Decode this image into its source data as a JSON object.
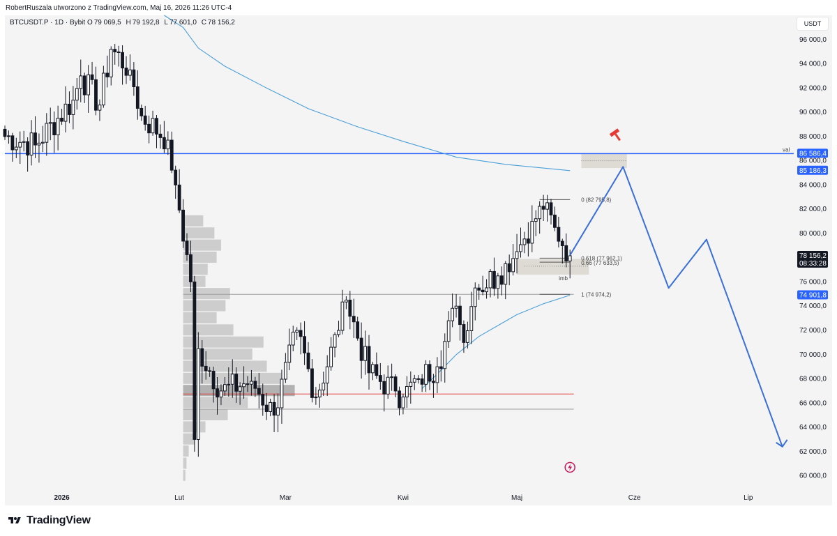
{
  "header": {
    "attribution": "RobertRuszala utworzono z TradingView.com, Maj 16, 2026 11:26 UTC-4",
    "symbol": "BTCUSDT.P · 1D · Bybit",
    "ohlc": [
      {
        "key": "O",
        "value": "79 069,5"
      },
      {
        "key": "H",
        "value": "79 192,8"
      },
      {
        "key": "L",
        "value": "77 601,0"
      },
      {
        "key": "C",
        "value": "78 156,2"
      }
    ],
    "currency": "USDT"
  },
  "footer": {
    "logo_text": "TradingView"
  },
  "colors": {
    "background": "#f4f4f4",
    "candle": "#131722",
    "blue_line": "#2962ff",
    "projection": "#3a6fd8",
    "ma_line": "#4a9fd8",
    "poc_red": "#e53935",
    "profile_grey": "#8a8a8a",
    "badge_blue": "#2962ff",
    "badge_dark": "#131722"
  },
  "icons": [
    "tradingview-logo-icon",
    "hammer-icon",
    "lightning-icon"
  ],
  "chart_data": {
    "type": "candlestick",
    "timeframe": "1D",
    "ylim": [
      59000,
      98000
    ],
    "y_ticks": [
      {
        "value": 96000,
        "label": "96 000,0"
      },
      {
        "value": 94000,
        "label": "94 000,0"
      },
      {
        "value": 92000,
        "label": "92 000,0"
      },
      {
        "value": 90000,
        "label": "90 000,0"
      },
      {
        "value": 88000,
        "label": "88 000,0"
      },
      {
        "value": 86000,
        "label": "86 000,0"
      },
      {
        "value": 84000,
        "label": "84 000,0"
      },
      {
        "value": 82000,
        "label": "82 000,0"
      },
      {
        "value": 80000,
        "label": "80 000,0"
      },
      {
        "value": 78000,
        "label": "78 000,0"
      },
      {
        "value": 76000,
        "label": "76 000,0"
      },
      {
        "value": 74000,
        "label": "74 000,0"
      },
      {
        "value": 72000,
        "label": "72 000,0"
      },
      {
        "value": 70000,
        "label": "70 000,0"
      },
      {
        "value": 68000,
        "label": "68 000,0"
      },
      {
        "value": 66000,
        "label": "66 000,0"
      },
      {
        "value": 64000,
        "label": "64 000,0"
      },
      {
        "value": 62000,
        "label": "62 000,0"
      },
      {
        "value": 60000,
        "label": "60 000,0"
      }
    ],
    "x_months": [
      {
        "date": "2026-01-01",
        "label": "2026"
      },
      {
        "date": "2026-02-01",
        "label": "Lut"
      },
      {
        "date": "2026-03-01",
        "label": "Mar"
      },
      {
        "date": "2026-04-01",
        "label": "Kwi"
      },
      {
        "date": "2026-05-01",
        "label": "Maj"
      },
      {
        "date": "2026-06-01",
        "label": "Cze"
      },
      {
        "date": "2026-07-01",
        "label": "Lip"
      }
    ],
    "x_range": [
      "2025-12-17",
      "2026-07-13"
    ],
    "anchors": [
      {
        "date": "2025-12-17",
        "price": 88000
      },
      {
        "date": "2025-12-25",
        "price": 87300
      },
      {
        "date": "2026-01-04",
        "price": 91000
      },
      {
        "date": "2026-01-06",
        "price": 93000
      },
      {
        "date": "2026-01-11",
        "price": 90600
      },
      {
        "date": "2026-01-14",
        "price": 95200
      },
      {
        "date": "2026-01-19",
        "price": 93500
      },
      {
        "date": "2026-01-22",
        "price": 89700
      },
      {
        "date": "2026-01-29",
        "price": 87700
      },
      {
        "date": "2026-01-31",
        "price": 84000
      },
      {
        "date": "2026-02-04",
        "price": 76000
      },
      {
        "date": "2026-02-05",
        "price": 63000
      },
      {
        "date": "2026-02-06",
        "price": 70500
      },
      {
        "date": "2026-02-12",
        "price": 67000
      },
      {
        "date": "2026-02-20",
        "price": 67800
      },
      {
        "date": "2026-02-26",
        "price": 65000
      },
      {
        "date": "2026-03-04",
        "price": 72000
      },
      {
        "date": "2026-03-09",
        "price": 66500
      },
      {
        "date": "2026-03-15",
        "price": 72000
      },
      {
        "date": "2026-03-17",
        "price": 74500
      },
      {
        "date": "2026-03-23",
        "price": 68500
      },
      {
        "date": "2026-03-30",
        "price": 67000
      },
      {
        "date": "2026-04-01",
        "price": 66500
      },
      {
        "date": "2026-04-05",
        "price": 68000
      },
      {
        "date": "2026-04-10",
        "price": 69000
      },
      {
        "date": "2026-04-15",
        "price": 74000
      },
      {
        "date": "2026-04-17",
        "price": 71000
      },
      {
        "date": "2026-04-20",
        "price": 75500
      },
      {
        "date": "2026-04-26",
        "price": 76500
      },
      {
        "date": "2026-04-28",
        "price": 77500
      },
      {
        "date": "2026-05-01",
        "price": 78500
      },
      {
        "date": "2026-05-05",
        "price": 81000
      },
      {
        "date": "2026-05-08",
        "price": 82000
      },
      {
        "date": "2026-05-11",
        "price": 80500
      },
      {
        "date": "2026-05-15",
        "price": 78156
      }
    ],
    "ma_200": [
      {
        "date": "2026-01-28",
        "price": 98000
      },
      {
        "date": "2026-02-02",
        "price": 97000
      },
      {
        "date": "2026-02-06",
        "price": 95300
      },
      {
        "date": "2026-02-13",
        "price": 93800
      },
      {
        "date": "2026-02-24",
        "price": 92000
      },
      {
        "date": "2026-03-07",
        "price": 90300
      },
      {
        "date": "2026-03-20",
        "price": 88800
      },
      {
        "date": "2026-04-01",
        "price": 87600
      },
      {
        "date": "2026-04-15",
        "price": 86300
      },
      {
        "date": "2026-04-28",
        "price": 85700
      },
      {
        "date": "2026-05-15",
        "price": 85186
      }
    ],
    "ma_fast": [
      {
        "date": "2026-04-06",
        "price": 67200
      },
      {
        "date": "2026-04-10",
        "price": 68400
      },
      {
        "date": "2026-04-15",
        "price": 70000
      },
      {
        "date": "2026-04-21",
        "price": 71500
      },
      {
        "date": "2026-04-26",
        "price": 72400
      },
      {
        "date": "2026-05-01",
        "price": 73300
      },
      {
        "date": "2026-05-08",
        "price": 74200
      },
      {
        "date": "2026-05-15",
        "price": 74902
      }
    ],
    "horizontal_lines": [
      {
        "price": 86586.4,
        "label": "val",
        "color": "#2962ff"
      },
      {
        "price": 74974.2,
        "color": "#9e9e9e"
      },
      {
        "price": 65500,
        "color": "#9e9e9e"
      },
      {
        "price": 66750,
        "color": "#e53935"
      }
    ],
    "price_badges": [
      {
        "price": 86586.4,
        "label": "86 586,4",
        "style": "blue"
      },
      {
        "price": 85186.3,
        "label": "85 186,3",
        "style": "blue"
      },
      {
        "price": 78156.2,
        "label": "78 156,2",
        "sublabel": "08:33:28",
        "style": "dark"
      },
      {
        "price": 74901.8,
        "label": "74 901,8",
        "style": "blue"
      }
    ],
    "fib_levels": [
      {
        "ratio": "0",
        "price": 82795.8,
        "label": "0 (82 795,8)"
      },
      {
        "ratio": "0.618",
        "price": 77962.1,
        "label": "0.618 (77 962,1)"
      },
      {
        "ratio": "0.66",
        "price": 77633.5,
        "label": "0.66 (77 633,5)"
      },
      {
        "ratio": "1",
        "price": 74974.2,
        "label": "1 (74 974,2)"
      }
    ],
    "zones": [
      {
        "label": "",
        "from": "2026-05-18",
        "to": "2026-05-30",
        "low": 85400,
        "high": 86600
      },
      {
        "label": "imb",
        "from": "2026-05-01",
        "to": "2026-05-20",
        "low": 76600,
        "high": 77900
      }
    ],
    "projection_path": [
      {
        "date": "2026-05-15",
        "price": 78200
      },
      {
        "date": "2026-05-29",
        "price": 85500
      },
      {
        "date": "2026-06-10",
        "price": 75500
      },
      {
        "date": "2026-06-20",
        "price": 79500
      },
      {
        "date": "2026-07-10",
        "price": 62400
      }
    ],
    "volume_profile": {
      "from_price": 60000,
      "to_price": 81000,
      "poc_price": 66750,
      "rows": [
        {
          "price": 81000,
          "volume": 0.18
        },
        {
          "price": 80000,
          "volume": 0.28
        },
        {
          "price": 79000,
          "volume": 0.34
        },
        {
          "price": 78000,
          "volume": 0.3
        },
        {
          "price": 77000,
          "volume": 0.22
        },
        {
          "price": 76000,
          "volume": 0.2
        },
        {
          "price": 75000,
          "volume": 0.42
        },
        {
          "price": 74000,
          "volume": 0.38
        },
        {
          "price": 73000,
          "volume": 0.3
        },
        {
          "price": 72000,
          "volume": 0.45
        },
        {
          "price": 71000,
          "volume": 0.72
        },
        {
          "price": 70000,
          "volume": 0.62
        },
        {
          "price": 69000,
          "volume": 0.75
        },
        {
          "price": 68000,
          "volume": 0.88
        },
        {
          "price": 67000,
          "volume": 1.0
        },
        {
          "price": 66000,
          "volume": 0.58
        },
        {
          "price": 65000,
          "volume": 0.4
        },
        {
          "price": 64000,
          "volume": 0.2
        },
        {
          "price": 63000,
          "volume": 0.1
        },
        {
          "price": 62000,
          "volume": 0.05
        },
        {
          "price": 61000,
          "volume": 0.03
        },
        {
          "price": 60000,
          "volume": 0.02
        }
      ]
    }
  }
}
